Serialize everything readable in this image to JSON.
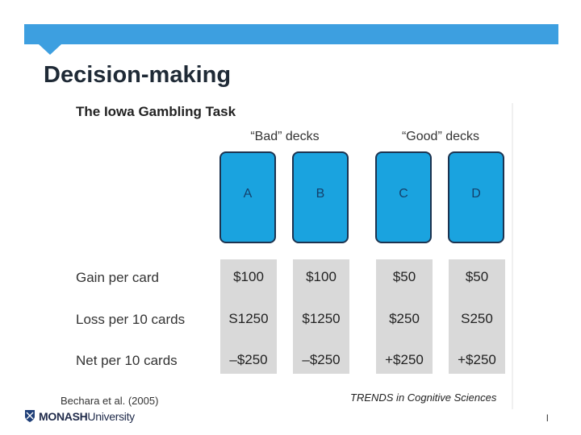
{
  "slide": {
    "title": "Decision-making",
    "citation": "Bechara et al. (2005)",
    "page_number": "l",
    "logo": {
      "brand": "MONASH",
      "suffix": "University"
    }
  },
  "figure": {
    "title": "The Iowa Gambling Task",
    "group_labels": [
      "“Bad” decks",
      "“Good” decks"
    ],
    "decks": [
      "A",
      "B",
      "C",
      "D"
    ],
    "rows": [
      {
        "label": "Gain per card",
        "values": [
          "$100",
          "$100",
          "$50",
          "$50"
        ]
      },
      {
        "label": "Loss per 10 cards",
        "values": [
          "S1250",
          "$1250",
          "$250",
          "S250"
        ]
      },
      {
        "label": "Net per 10 cards",
        "values": [
          "–$250",
          "–$250",
          "+$250",
          "+$250"
        ]
      }
    ],
    "source": "TRENDS in Cognitive Sciences"
  },
  "colors": {
    "banner": "#3d9fe0",
    "card": "#1aa3df",
    "card_border": "#1c3350",
    "column_bg": "#d9d9d9"
  }
}
